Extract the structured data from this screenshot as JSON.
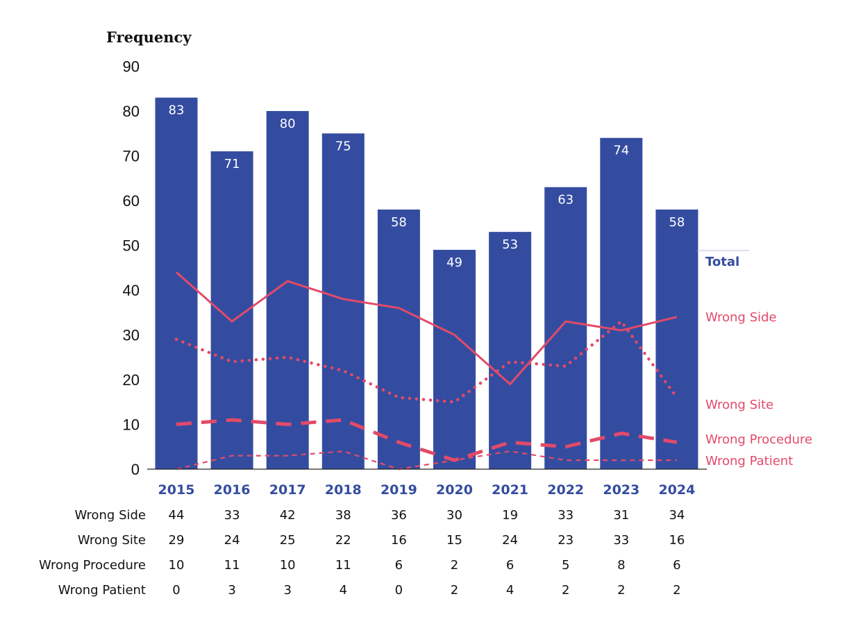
{
  "chart_data": {
    "type": "bar",
    "ylabel": "Frequency",
    "ylim": [
      0,
      90
    ],
    "yticks": [
      0,
      10,
      20,
      30,
      40,
      50,
      60,
      70,
      80,
      90
    ],
    "grid": false,
    "categories": [
      "2015",
      "2016",
      "2017",
      "2018",
      "2019",
      "2020",
      "2021",
      "2022",
      "2023",
      "2024"
    ],
    "bars": {
      "name": "Total",
      "values": [
        83,
        71,
        80,
        75,
        58,
        49,
        53,
        63,
        74,
        58
      ]
    },
    "series": [
      {
        "name": "Wrong Side",
        "type": "line",
        "line_style": "solid",
        "values": [
          44,
          33,
          42,
          38,
          36,
          30,
          19,
          33,
          31,
          34
        ]
      },
      {
        "name": "Wrong Site",
        "type": "line",
        "line_style": "dotted",
        "values": [
          29,
          24,
          25,
          22,
          16,
          15,
          24,
          23,
          33,
          16
        ]
      },
      {
        "name": "Wrong Procedure",
        "type": "line",
        "line_style": "long-dash",
        "values": [
          10,
          11,
          10,
          11,
          6,
          2,
          6,
          5,
          8,
          6
        ]
      },
      {
        "name": "Wrong Patient",
        "type": "line",
        "line_style": "short-dash",
        "values": [
          0,
          3,
          3,
          4,
          0,
          2,
          4,
          2,
          2,
          2
        ]
      }
    ],
    "legend": "right, labels at line ends",
    "colors": {
      "bar": "#344ca0",
      "lines": "#e34a68",
      "total_label": "#344ca0",
      "axis_ticks_x": "#344ca0"
    }
  }
}
